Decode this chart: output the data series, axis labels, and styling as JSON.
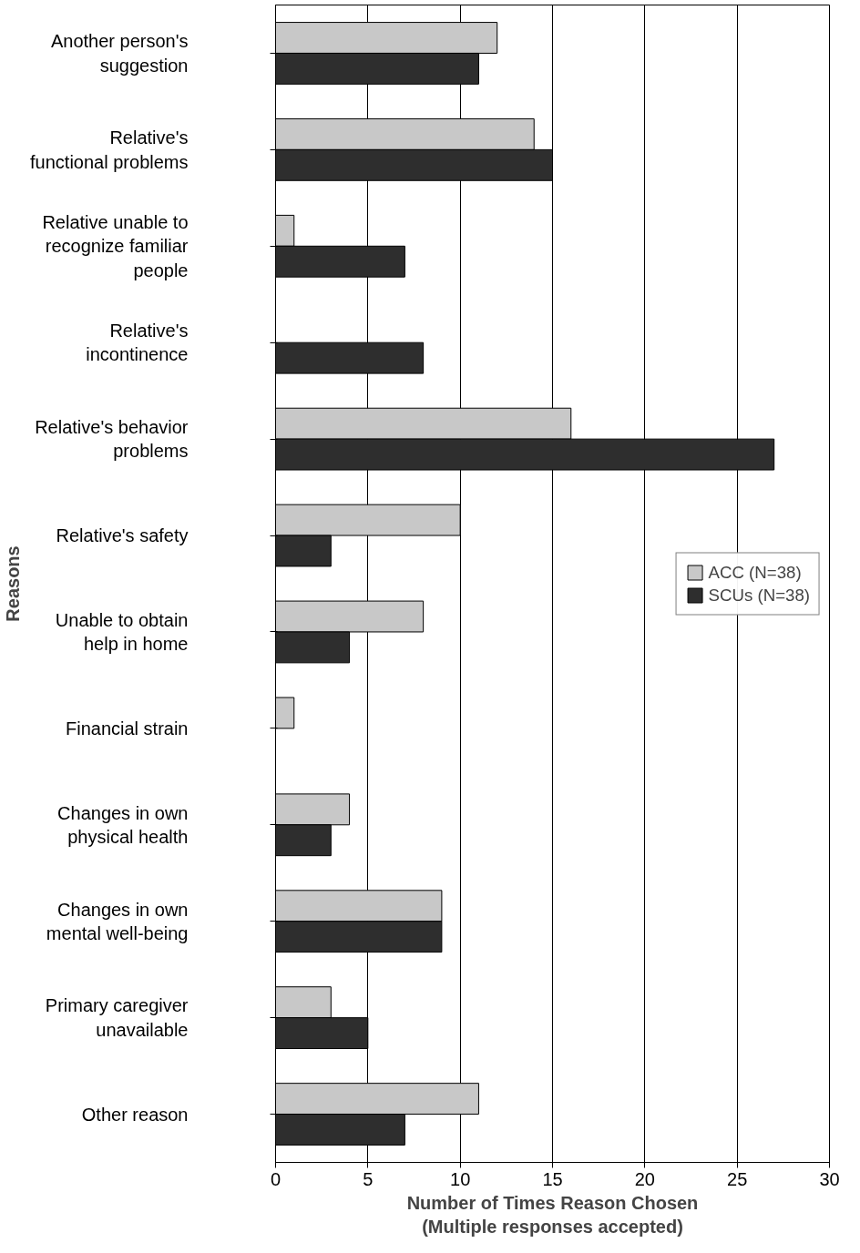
{
  "chart_data": {
    "type": "bar",
    "orientation": "horizontal",
    "xlabel": "Number of Times Reason Chosen\n(Multiple responses accepted)",
    "ylabel": "Reasons",
    "categories": [
      "Another person's suggestion",
      "Relative's functional problems",
      "Relative unable to recognize familiar people",
      "Relative's incontinence",
      "Relative's behavior problems",
      "Relative's safety",
      "Unable to obtain help in home",
      "Financial strain",
      "Changes in own physical health",
      "Changes in own mental well-being",
      "Primary caregiver unavailable",
      "Other reason"
    ],
    "series": [
      {
        "name": "ACC (N=38)",
        "color": "#c8c8c8",
        "values": [
          12,
          14,
          1,
          null,
          16,
          10,
          8,
          1,
          4,
          9,
          3,
          11
        ]
      },
      {
        "name": "SCUs (N=38)",
        "color": "#2e2e2e",
        "values": [
          11,
          15,
          7,
          8,
          27,
          3,
          4,
          null,
          3,
          9,
          5,
          7
        ]
      }
    ],
    "xlim": [
      0,
      30
    ],
    "xticks": [
      0,
      5,
      10,
      15,
      20,
      25,
      30
    ],
    "grid": "x",
    "legend": "right"
  }
}
